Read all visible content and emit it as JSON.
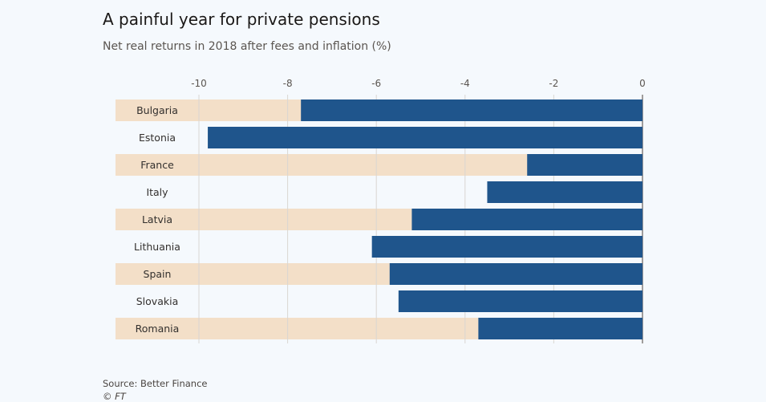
{
  "title": "A painful year for private pensions",
  "subtitle": "Net real returns in 2018 after fees and inflation (%)",
  "source": "Source: Better Finance",
  "copyright": "© FT",
  "colors": {
    "bar": "#1f558c",
    "band": "#f3dfc8",
    "grid": "#d9d6d2",
    "zero_line": "#66605b",
    "background": "#f5f9fd"
  },
  "chart_data": {
    "type": "bar",
    "orientation": "horizontal",
    "categories": [
      "Bulgaria",
      "Estonia",
      "France",
      "Italy",
      "Latvia",
      "Lithuania",
      "Spain",
      "Slovakia",
      "Romania"
    ],
    "values": [
      -7.7,
      -9.8,
      -2.6,
      -3.5,
      -5.2,
      -6.1,
      -5.7,
      -5.5,
      -3.7
    ],
    "xlim": [
      -10,
      0
    ],
    "xticks": [
      -10,
      -8,
      -6,
      -4,
      -2,
      0
    ],
    "xtick_labels": [
      "-10",
      "-8",
      "-6",
      "-4",
      "-2",
      "0"
    ],
    "axis_position": "top",
    "grid": true
  }
}
